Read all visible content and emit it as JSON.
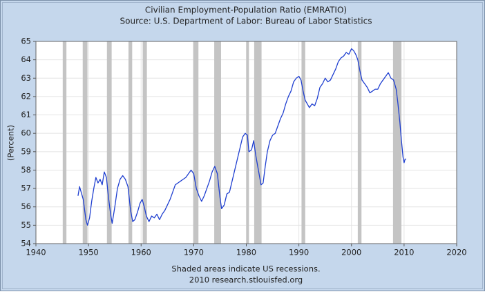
{
  "chart_data": {
    "type": "line",
    "title": "Civilian Employment-Population Ratio (EMRATIO)",
    "subtitle": "Source: U.S. Department of Labor: Bureau of Labor Statistics",
    "y_label": "(Percent)",
    "annotation": "Shaded areas indicate US recessions.",
    "credit": "2010 research.stlouisfed.org",
    "color": "#1f3fd0",
    "recession_color": "#c4c4c4",
    "grid": true,
    "xlim": [
      1940,
      2020
    ],
    "xticks": [
      1940,
      1950,
      1960,
      1970,
      1980,
      1990,
      2000,
      2010,
      2020
    ],
    "ylim": [
      54,
      65
    ],
    "yticks": [
      54,
      55,
      56,
      57,
      58,
      59,
      60,
      61,
      62,
      63,
      64,
      65
    ],
    "recessions": [
      [
        1945.1,
        1945.8
      ],
      [
        1948.9,
        1949.8
      ],
      [
        1953.5,
        1954.4
      ],
      [
        1957.6,
        1958.3
      ],
      [
        1960.3,
        1961.1
      ],
      [
        1969.9,
        1970.9
      ],
      [
        1973.9,
        1975.2
      ],
      [
        1980.0,
        1980.5
      ],
      [
        1981.5,
        1982.9
      ],
      [
        1990.5,
        1991.2
      ],
      [
        2001.2,
        2001.9
      ],
      [
        2007.9,
        2009.5
      ]
    ],
    "x": [
      1948.0,
      1948.3,
      1948.6,
      1949.0,
      1949.5,
      1949.8,
      1950.2,
      1950.6,
      1951.0,
      1951.4,
      1951.8,
      1952.2,
      1952.6,
      1953.0,
      1953.4,
      1953.8,
      1954.2,
      1954.5,
      1955.0,
      1955.5,
      1956.0,
      1956.5,
      1957.0,
      1957.5,
      1958.0,
      1958.4,
      1958.8,
      1959.3,
      1959.8,
      1960.2,
      1960.6,
      1961.0,
      1961.5,
      1962.0,
      1962.5,
      1963.0,
      1963.5,
      1964.0,
      1964.5,
      1965.0,
      1965.5,
      1966.0,
      1966.5,
      1967.0,
      1967.5,
      1968.0,
      1968.5,
      1969.0,
      1969.5,
      1970.0,
      1970.5,
      1971.0,
      1971.5,
      1972.0,
      1972.5,
      1973.0,
      1973.5,
      1974.0,
      1974.5,
      1975.0,
      1975.3,
      1975.8,
      1976.3,
      1976.8,
      1977.3,
      1977.8,
      1978.3,
      1978.8,
      1979.3,
      1979.8,
      1980.2,
      1980.5,
      1981.0,
      1981.4,
      1981.8,
      1982.3,
      1982.8,
      1983.2,
      1983.6,
      1984.0,
      1984.5,
      1985.0,
      1985.5,
      1986.0,
      1986.5,
      1987.0,
      1987.5,
      1988.0,
      1988.5,
      1989.0,
      1989.5,
      1990.0,
      1990.4,
      1990.8,
      1991.2,
      1991.6,
      1992.0,
      1992.5,
      1993.0,
      1993.5,
      1994.0,
      1994.5,
      1995.0,
      1995.5,
      1996.0,
      1996.5,
      1997.0,
      1997.5,
      1998.0,
      1998.5,
      1999.0,
      1999.5,
      2000.0,
      2000.4,
      2000.8,
      2001.2,
      2001.6,
      2002.0,
      2002.5,
      2003.0,
      2003.5,
      2004.0,
      2004.5,
      2005.0,
      2005.5,
      2006.0,
      2006.5,
      2007.0,
      2007.5,
      2008.0,
      2008.5,
      2008.8,
      2009.2,
      2009.5,
      2009.8,
      2010.0,
      2010.2,
      2010.4
    ],
    "values": [
      56.6,
      57.1,
      56.8,
      56.4,
      55.3,
      55.0,
      55.4,
      56.3,
      57.0,
      57.6,
      57.3,
      57.5,
      57.2,
      57.9,
      57.6,
      56.5,
      55.6,
      55.1,
      56.0,
      57.0,
      57.5,
      57.7,
      57.5,
      57.1,
      55.8,
      55.2,
      55.3,
      55.7,
      56.2,
      56.4,
      56.0,
      55.5,
      55.2,
      55.5,
      55.4,
      55.6,
      55.3,
      55.6,
      55.8,
      56.1,
      56.4,
      56.8,
      57.2,
      57.3,
      57.4,
      57.5,
      57.6,
      57.8,
      58.0,
      57.8,
      57.0,
      56.6,
      56.3,
      56.6,
      57.0,
      57.4,
      57.9,
      58.2,
      57.8,
      56.5,
      55.9,
      56.1,
      56.7,
      56.8,
      57.4,
      58.0,
      58.6,
      59.2,
      59.8,
      60.0,
      59.9,
      59.0,
      59.1,
      59.6,
      58.8,
      58.0,
      57.2,
      57.3,
      58.2,
      59.0,
      59.6,
      59.9,
      60.0,
      60.4,
      60.8,
      61.1,
      61.6,
      62.0,
      62.3,
      62.8,
      63.0,
      63.1,
      62.9,
      62.3,
      61.8,
      61.6,
      61.4,
      61.6,
      61.5,
      61.9,
      62.5,
      62.7,
      63.0,
      62.8,
      62.9,
      63.2,
      63.5,
      63.9,
      64.1,
      64.2,
      64.4,
      64.3,
      64.6,
      64.5,
      64.3,
      64.0,
      63.4,
      62.9,
      62.7,
      62.5,
      62.2,
      62.3,
      62.4,
      62.4,
      62.7,
      62.9,
      63.1,
      63.3,
      63.0,
      62.9,
      62.4,
      61.7,
      60.6,
      59.6,
      58.7,
      58.4,
      58.6,
      58.6
    ]
  }
}
